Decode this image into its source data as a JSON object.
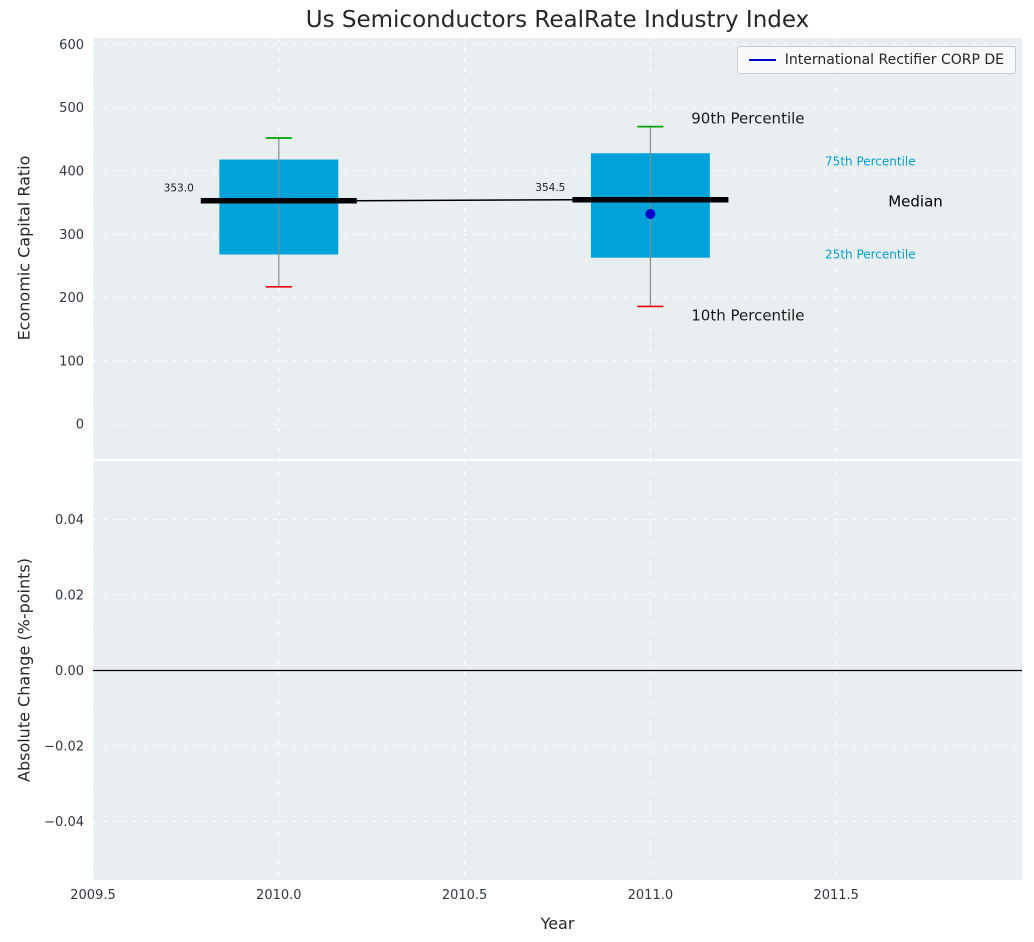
{
  "figure": {
    "title": "Us Semiconductors RealRate Industry Index",
    "background": "#ffffff"
  },
  "legend": {
    "label": "International Rectifier CORP DE",
    "line_color": "#0000cc"
  },
  "chart_data": [
    {
      "type": "boxplot",
      "title": "Us Semiconductors RealRate Industry Index",
      "ylabel": "Economic Capital Ratio",
      "xlim": [
        2009.5,
        2012.0
      ],
      "ylim": [
        -55,
        610
      ],
      "yticks": [
        0,
        100,
        200,
        300,
        400,
        500,
        600
      ],
      "ytick_labels": [
        "0",
        "100",
        "200",
        "300",
        "400",
        "500",
        "600"
      ],
      "grid": true,
      "legend_position": "upper right",
      "background": "#e9eef1",
      "tick_color": "#303640",
      "box_width": 0.32,
      "median_width": 0.42,
      "cap_width": 0.07,
      "colors": {
        "box": "#00a2d9",
        "median": "#000000",
        "connector": "#000000",
        "whisker": "#8a8a8a",
        "cap_top": "#00a000",
        "cap_bottom": "#e8000b"
      },
      "boxes": [
        {
          "x": 2010,
          "p10": 217,
          "q25": 268,
          "median": 353.0,
          "q75": 418,
          "p90": 452,
          "median_label": "353.0"
        },
        {
          "x": 2011,
          "p10": 186,
          "q25": 263,
          "median": 354.5,
          "q75": 428,
          "p90": 470,
          "median_label": "354.5"
        }
      ],
      "company_point": {
        "x": 2011,
        "y": 332,
        "color": "#0000cc",
        "label": "International Rectifier CORP DE"
      },
      "annotations": [
        {
          "text": "90th Percentile",
          "x": 2011.11,
          "y": 483,
          "color": "#1a1a1a",
          "size": 15
        },
        {
          "text": "75th Percentile",
          "x": 2011.47,
          "y": 415,
          "color": "#009fd4",
          "size": 12
        },
        {
          "text": "Median",
          "x": 2011.64,
          "y": 352,
          "color": "#000000",
          "size": 15
        },
        {
          "text": "25th Percentile",
          "x": 2011.47,
          "y": 268,
          "color": "#009fd4",
          "size": 12
        },
        {
          "text": "10th Percentile",
          "x": 2011.11,
          "y": 172,
          "color": "#1a1a1a",
          "size": 15
        }
      ]
    },
    {
      "type": "line",
      "ylabel": "Absolute Change (%-points)",
      "xlabel": "Year",
      "xlim": [
        2009.5,
        2012.0
      ],
      "ylim": [
        -0.0555,
        0.0555
      ],
      "yticks": [
        -0.04,
        -0.02,
        0,
        0.02,
        0.04
      ],
      "ytick_labels": [
        "−0.04",
        "−0.02",
        "0.00",
        "0.02",
        "0.04"
      ],
      "xticks": [
        2009.5,
        2010,
        2010.5,
        2011,
        2011.5
      ],
      "xtick_labels": [
        "2009.5",
        "2010.0",
        "2010.5",
        "2011.0",
        "2011.5"
      ],
      "grid": true,
      "background": "#e9eef1",
      "tick_color": "#303640",
      "zero_line": {
        "y": 0,
        "color": "#000000"
      },
      "series": []
    }
  ]
}
